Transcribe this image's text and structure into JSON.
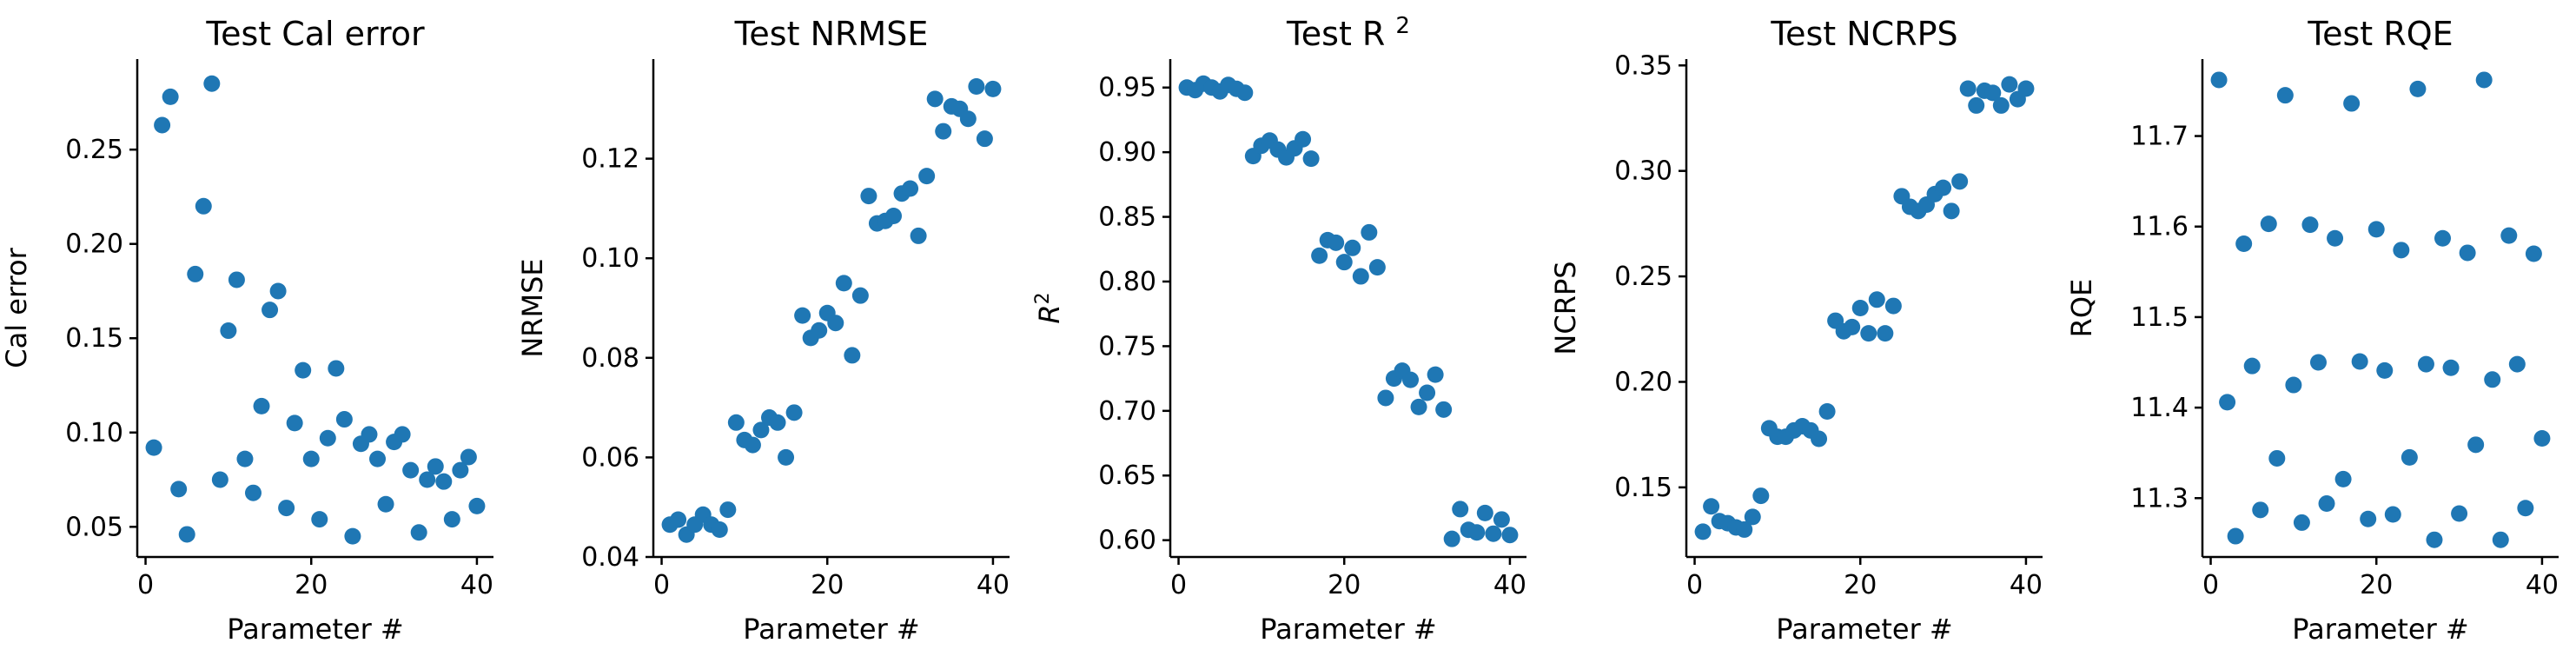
{
  "chart_data": [
    {
      "type": "scatter",
      "title": "Test Cal error",
      "xlabel": "Parameter #",
      "ylabel": "Cal error",
      "xlim": [
        -1,
        42
      ],
      "ylim": [
        0.034,
        0.298
      ],
      "xticks": [
        0,
        20,
        40
      ],
      "yticks": [
        0.05,
        0.1,
        0.15,
        0.2,
        0.25
      ],
      "ytick_labels": [
        "0.05",
        "0.10",
        "0.15",
        "0.20",
        "0.25"
      ],
      "color": "#1f77b4",
      "grid": false,
      "x": [
        1,
        2,
        3,
        4,
        5,
        6,
        7,
        8,
        9,
        10,
        11,
        12,
        13,
        14,
        15,
        16,
        17,
        18,
        19,
        20,
        21,
        22,
        23,
        24,
        25,
        26,
        27,
        28,
        29,
        30,
        31,
        32,
        33,
        34,
        35,
        36,
        37,
        38,
        39,
        40
      ],
      "y": [
        0.092,
        0.263,
        0.278,
        0.07,
        0.046,
        0.184,
        0.22,
        0.285,
        0.075,
        0.154,
        0.181,
        0.086,
        0.068,
        0.114,
        0.165,
        0.175,
        0.06,
        0.105,
        0.133,
        0.086,
        0.054,
        0.097,
        0.134,
        0.107,
        0.045,
        0.094,
        0.099,
        0.086,
        0.062,
        0.095,
        0.099,
        0.08,
        0.047,
        0.075,
        0.082,
        0.074,
        0.054,
        0.08,
        0.087,
        0.061
      ]
    },
    {
      "type": "scatter",
      "title": "Test NRMSE",
      "xlabel": "Parameter #",
      "ylabel": "NRMSE",
      "xlim": [
        -1,
        42
      ],
      "ylim": [
        0.04,
        0.14
      ],
      "xticks": [
        0,
        20,
        40
      ],
      "yticks": [
        0.04,
        0.06,
        0.08,
        0.1,
        0.12
      ],
      "ytick_labels": [
        "0.04",
        "0.06",
        "0.08",
        "0.10",
        "0.12"
      ],
      "color": "#1f77b4",
      "grid": false,
      "x": [
        1,
        2,
        3,
        4,
        5,
        6,
        7,
        8,
        9,
        10,
        11,
        12,
        13,
        14,
        15,
        16,
        17,
        18,
        19,
        20,
        21,
        22,
        23,
        24,
        25,
        26,
        27,
        28,
        29,
        30,
        31,
        32,
        33,
        34,
        35,
        36,
        37,
        38,
        39,
        40
      ],
      "y": [
        0.0465,
        0.0475,
        0.0445,
        0.0465,
        0.0485,
        0.0465,
        0.0455,
        0.0495,
        0.067,
        0.0635,
        0.0625,
        0.0655,
        0.068,
        0.067,
        0.06,
        0.069,
        0.0885,
        0.084,
        0.0855,
        0.089,
        0.087,
        0.095,
        0.0805,
        0.0925,
        0.1125,
        0.107,
        0.1075,
        0.1085,
        0.113,
        0.114,
        0.1045,
        0.1165,
        0.132,
        0.1255,
        0.1305,
        0.13,
        0.128,
        0.1345,
        0.124,
        0.134
      ]
    },
    {
      "type": "scatter",
      "title": "Test R",
      "title_superscript": "2",
      "xlabel": "Parameter #",
      "ylabel": "R",
      "ylabel_superscript": "2",
      "xlim": [
        -1,
        42
      ],
      "ylim": [
        0.587,
        0.972
      ],
      "xticks": [
        0,
        20,
        40
      ],
      "yticks": [
        0.6,
        0.65,
        0.7,
        0.75,
        0.8,
        0.85,
        0.9,
        0.95
      ],
      "ytick_labels": [
        "0.60",
        "0.65",
        "0.70",
        "0.75",
        "0.80",
        "0.85",
        "0.90",
        "0.95"
      ],
      "color": "#1f77b4",
      "grid": false,
      "x": [
        1,
        2,
        3,
        4,
        5,
        6,
        7,
        8,
        9,
        10,
        11,
        12,
        13,
        14,
        15,
        16,
        17,
        18,
        19,
        20,
        21,
        22,
        23,
        24,
        25,
        26,
        27,
        28,
        29,
        30,
        31,
        32,
        33,
        34,
        35,
        36,
        37,
        38,
        39,
        40
      ],
      "y": [
        0.95,
        0.948,
        0.953,
        0.95,
        0.947,
        0.952,
        0.949,
        0.946,
        0.897,
        0.905,
        0.909,
        0.902,
        0.896,
        0.903,
        0.91,
        0.895,
        0.82,
        0.832,
        0.83,
        0.815,
        0.826,
        0.804,
        0.838,
        0.811,
        0.71,
        0.725,
        0.731,
        0.724,
        0.703,
        0.714,
        0.728,
        0.701,
        0.601,
        0.624,
        0.608,
        0.606,
        0.621,
        0.605,
        0.616,
        0.604
      ]
    },
    {
      "type": "scatter",
      "title": "Test NCRPS",
      "xlabel": "Parameter #",
      "ylabel": "NCRPS",
      "xlim": [
        -1,
        42
      ],
      "ylim": [
        0.117,
        0.353
      ],
      "xticks": [
        0,
        20,
        40
      ],
      "yticks": [
        0.15,
        0.2,
        0.25,
        0.3,
        0.35
      ],
      "ytick_labels": [
        "0.15",
        "0.20",
        "0.25",
        "0.30",
        "0.35"
      ],
      "color": "#1f77b4",
      "grid": false,
      "x": [
        1,
        2,
        3,
        4,
        5,
        6,
        7,
        8,
        9,
        10,
        11,
        12,
        13,
        14,
        15,
        16,
        17,
        18,
        19,
        20,
        21,
        22,
        23,
        24,
        25,
        26,
        27,
        28,
        29,
        30,
        31,
        32,
        33,
        34,
        35,
        36,
        37,
        38,
        39,
        40
      ],
      "y": [
        0.129,
        0.141,
        0.134,
        0.133,
        0.131,
        0.13,
        0.136,
        0.146,
        0.178,
        0.174,
        0.174,
        0.177,
        0.179,
        0.177,
        0.173,
        0.186,
        0.229,
        0.224,
        0.226,
        0.235,
        0.223,
        0.239,
        0.223,
        0.236,
        0.288,
        0.283,
        0.281,
        0.284,
        0.289,
        0.292,
        0.281,
        0.295,
        0.339,
        0.331,
        0.338,
        0.337,
        0.331,
        0.341,
        0.334,
        0.339
      ]
    },
    {
      "type": "scatter",
      "title": "Test RQE",
      "xlabel": "Parameter #",
      "ylabel": "RQE",
      "xlim": [
        -1,
        42
      ],
      "ylim": [
        11.235,
        11.785
      ],
      "xticks": [
        0,
        20,
        40
      ],
      "yticks": [
        11.3,
        11.4,
        11.5,
        11.6,
        11.7
      ],
      "ytick_labels": [
        "11.3",
        "11.4",
        "11.5",
        "11.6",
        "11.7"
      ],
      "color": "#1f77b4",
      "grid": false,
      "x": [
        1,
        2,
        3,
        4,
        5,
        6,
        7,
        8,
        9,
        10,
        11,
        12,
        13,
        14,
        15,
        16,
        17,
        18,
        19,
        20,
        21,
        22,
        23,
        24,
        25,
        26,
        27,
        28,
        29,
        30,
        31,
        32,
        33,
        34,
        35,
        36,
        37,
        38,
        39,
        40
      ],
      "y": [
        11.762,
        11.406,
        11.258,
        11.581,
        11.446,
        11.287,
        11.603,
        11.344,
        11.745,
        11.425,
        11.273,
        11.602,
        11.45,
        11.294,
        11.587,
        11.321,
        11.736,
        11.451,
        11.277,
        11.597,
        11.441,
        11.282,
        11.574,
        11.345,
        11.752,
        11.448,
        11.254,
        11.587,
        11.444,
        11.283,
        11.571,
        11.359,
        11.762,
        11.431,
        11.254,
        11.59,
        11.448,
        11.289,
        11.57,
        11.366
      ]
    }
  ]
}
